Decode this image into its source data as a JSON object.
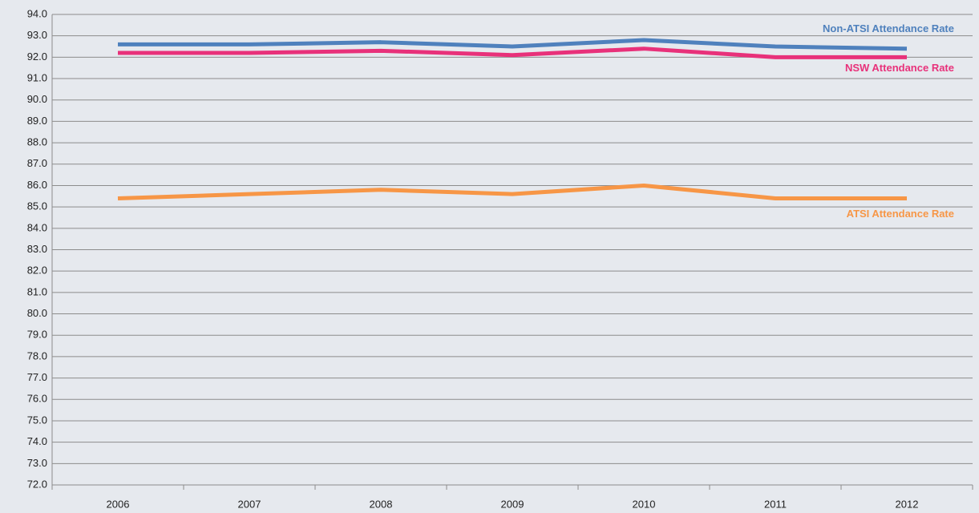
{
  "chart_data": {
    "type": "line",
    "categories": [
      "2006",
      "2007",
      "2008",
      "2009",
      "2010",
      "2011",
      "2012"
    ],
    "series": [
      {
        "name": "Non-ATSI Attendance Rate",
        "color": "#4f81bd",
        "values": [
          92.6,
          92.6,
          92.7,
          92.5,
          92.8,
          92.5,
          92.4
        ]
      },
      {
        "name": "NSW Attendance Rate",
        "color": "#e8317a",
        "values": [
          92.2,
          92.2,
          92.3,
          92.1,
          92.4,
          92.0,
          92.0
        ]
      },
      {
        "name": "ATSI Attendance Rate",
        "color": "#f79646",
        "values": [
          85.4,
          85.6,
          85.8,
          85.6,
          86.0,
          85.4,
          85.4
        ]
      }
    ],
    "ylim": [
      72,
      94
    ],
    "yticks": [
      {
        "value": 72,
        "label": "72.0"
      },
      {
        "value": 73,
        "label": "73.0"
      },
      {
        "value": 74,
        "label": "74.0"
      },
      {
        "value": 75,
        "label": "75.0"
      },
      {
        "value": 76,
        "label": "76.0"
      },
      {
        "value": 77,
        "label": "77.0"
      },
      {
        "value": 78,
        "label": "78.0"
      },
      {
        "value": 79,
        "label": "79.0"
      },
      {
        "value": 80,
        "label": "80.0"
      },
      {
        "value": 81,
        "label": "81.0"
      },
      {
        "value": 82,
        "label": "82.0"
      },
      {
        "value": 83,
        "label": "83.0"
      },
      {
        "value": 84,
        "label": "84.0"
      },
      {
        "value": 85,
        "label": "85.0"
      },
      {
        "value": 86,
        "label": "86.0"
      },
      {
        "value": 87,
        "label": "87.0"
      },
      {
        "value": 88,
        "label": "88.0"
      },
      {
        "value": 89,
        "label": "89.0"
      },
      {
        "value": 90,
        "label": "90.0"
      },
      {
        "value": 91,
        "label": "91.0"
      },
      {
        "value": 92,
        "label": "92.0"
      },
      {
        "value": 93,
        "label": "93.0"
      },
      {
        "value": 94,
        "label": "94.0"
      }
    ],
    "grid": true
  }
}
